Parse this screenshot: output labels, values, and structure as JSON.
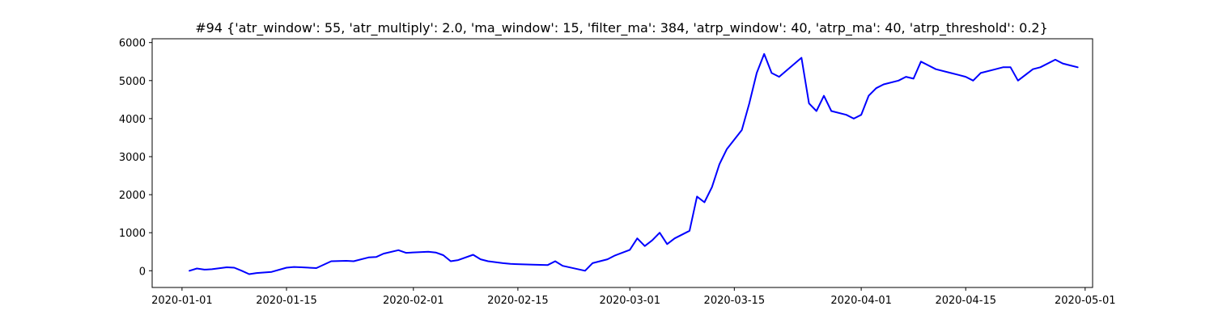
{
  "chart_data": {
    "type": "line",
    "title": "#94 {'atr_window': 55, 'atr_multiply': 2.0, 'ma_window': 15, 'filter_ma': 384, 'atrp_window': 40, 'atrp_ma': 40, 'atrp_threshold': 0.2}",
    "xlabel": "",
    "ylabel": "",
    "x_type": "date",
    "xlim": [
      "2019-12-28",
      "2020-05-02"
    ],
    "ylim": [
      -440,
      6100
    ],
    "grid": false,
    "line_color": "#0000ff",
    "x_ticks": [
      "2020-01-01",
      "2020-01-15",
      "2020-02-01",
      "2020-02-15",
      "2020-03-01",
      "2020-03-15",
      "2020-04-01",
      "2020-04-15",
      "2020-05-01"
    ],
    "y_ticks": [
      0,
      1000,
      2000,
      3000,
      4000,
      5000,
      6000
    ],
    "series": [
      {
        "x": [
          "2020-01-02",
          "2020-01-03",
          "2020-01-04",
          "2020-01-05",
          "2020-01-07",
          "2020-01-08",
          "2020-01-09",
          "2020-01-10",
          "2020-01-11",
          "2020-01-13",
          "2020-01-15",
          "2020-01-16",
          "2020-01-17",
          "2020-01-19",
          "2020-01-21",
          "2020-01-23",
          "2020-01-24",
          "2020-01-26",
          "2020-01-27",
          "2020-01-28",
          "2020-01-30",
          "2020-01-31",
          "2020-02-03",
          "2020-02-04",
          "2020-02-05",
          "2020-02-06",
          "2020-02-07",
          "2020-02-09",
          "2020-02-10",
          "2020-02-11",
          "2020-02-13",
          "2020-02-14",
          "2020-02-17",
          "2020-02-19",
          "2020-02-20",
          "2020-02-21",
          "2020-02-24",
          "2020-02-25",
          "2020-02-26",
          "2020-02-27",
          "2020-02-28",
          "2020-03-01",
          "2020-03-02",
          "2020-03-03",
          "2020-03-04",
          "2020-03-05",
          "2020-03-06",
          "2020-03-07",
          "2020-03-09",
          "2020-03-10",
          "2020-03-11",
          "2020-03-12",
          "2020-03-13",
          "2020-03-14",
          "2020-03-16",
          "2020-03-17",
          "2020-03-18",
          "2020-03-19",
          "2020-03-20",
          "2020-03-21",
          "2020-03-24",
          "2020-03-25",
          "2020-03-26",
          "2020-03-27",
          "2020-03-28",
          "2020-03-30",
          "2020-03-31",
          "2020-04-01",
          "2020-04-02",
          "2020-04-03",
          "2020-04-04",
          "2020-04-06",
          "2020-04-07",
          "2020-04-08",
          "2020-04-09",
          "2020-04-11",
          "2020-04-13",
          "2020-04-14",
          "2020-04-15",
          "2020-04-16",
          "2020-04-17",
          "2020-04-19",
          "2020-04-20",
          "2020-04-21",
          "2020-04-22",
          "2020-04-24",
          "2020-04-25",
          "2020-04-27",
          "2020-04-28",
          "2020-04-29",
          "2020-04-30"
        ],
        "y": [
          0,
          60,
          30,
          40,
          90,
          80,
          0,
          -90,
          -60,
          -30,
          80,
          100,
          90,
          70,
          250,
          260,
          250,
          350,
          360,
          450,
          540,
          470,
          500,
          480,
          410,
          250,
          280,
          420,
          300,
          250,
          200,
          180,
          160,
          150,
          250,
          130,
          0,
          200,
          250,
          300,
          400,
          550,
          850,
          650,
          800,
          1000,
          700,
          850,
          1050,
          1950,
          1800,
          2200,
          2800,
          3200,
          3700,
          4400,
          5200,
          5700,
          5200,
          5100,
          5600,
          4400,
          4200,
          4600,
          4200,
          4100,
          4000,
          4100,
          4600,
          4800,
          4900,
          5000,
          5100,
          5050,
          5500,
          5300,
          5200,
          5150,
          5100,
          5000,
          5200,
          5300,
          5350,
          5350,
          5000,
          5300,
          5350,
          5550,
          5450,
          5400,
          5350
        ]
      }
    ]
  }
}
